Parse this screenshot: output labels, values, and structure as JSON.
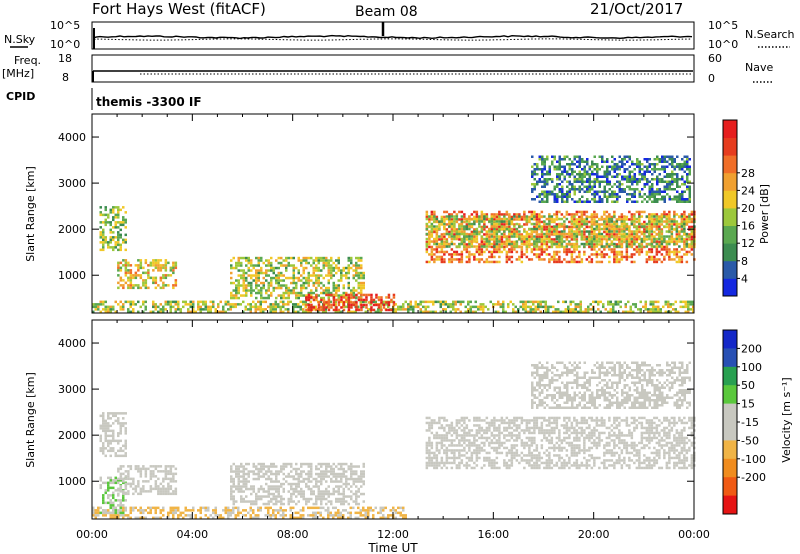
{
  "header": {
    "station": "Fort Hays West (fitACF)",
    "beam": "Beam 08",
    "date": "21/Oct/2017"
  },
  "top_panels": {
    "nsky_label": "N.Sky",
    "nsky_ticks": [
      "10^5",
      "10^0"
    ],
    "nsearch_label": "N.Search",
    "nsearch_ticks": [
      "10^5",
      "10^0"
    ],
    "freq_label": "Freq.",
    "freq_unit": "[MHz]",
    "freq_ticks": [
      "18",
      "8"
    ],
    "nave_label": "Nave",
    "nave_ticks": [
      "60",
      "0"
    ],
    "cpid_label": "CPID",
    "cpid_text": "themis -3300 IF"
  },
  "colors": {
    "power_scale": [
      "#1428e0",
      "#2a5aa8",
      "#3c8c50",
      "#5aa850",
      "#9cc83c",
      "#f0c828",
      "#f0a030",
      "#f06e28",
      "#e63c1e",
      "#e61e1e"
    ],
    "velocity_scale": [
      "#e61414",
      "#f05a14",
      "#f08c1e",
      "#f0b446",
      "#c8c8c0",
      "#c8c8c0",
      "#5ac83c",
      "#28a050",
      "#2850b4",
      "#1428c8"
    ],
    "ground_scatter": "#b4b4b4"
  },
  "chart_data": [
    {
      "type": "heatmap",
      "name": "Power",
      "ylabel": "Slant Range [km]",
      "xlabel": "",
      "xticks": [
        "00:00",
        "04:00",
        "08:00",
        "12:00",
        "16:00",
        "20:00",
        "00:00"
      ],
      "yticks": [
        "1000",
        "2000",
        "3000",
        "4000"
      ],
      "ylim": [
        180,
        4500
      ],
      "colorbar_label": "Power [dB]",
      "colorbar_ticks": [
        "4",
        "8",
        "12",
        "16",
        "20",
        "24",
        "28"
      ],
      "colorbar_range": [
        0,
        30
      ],
      "scatter_regions": [
        {
          "t_start": 0.0,
          "t_end": 24.0,
          "range_low": 200,
          "range_high": 450,
          "power_mean": 14
        },
        {
          "t_start": 0.3,
          "t_end": 1.3,
          "range_low": 1550,
          "range_high": 2500,
          "power_mean": 12
        },
        {
          "t_start": 1.0,
          "t_end": 3.3,
          "range_low": 750,
          "range_high": 1350,
          "power_mean": 16
        },
        {
          "t_start": 5.5,
          "t_end": 10.8,
          "range_low": 500,
          "range_high": 1400,
          "power_mean": 14
        },
        {
          "t_start": 8.5,
          "t_end": 12.0,
          "range_low": 250,
          "range_high": 600,
          "power_mean": 26
        },
        {
          "t_start": 13.3,
          "t_end": 24.0,
          "range_low": 1300,
          "range_high": 2400,
          "power_mean": 22
        },
        {
          "t_start": 13.3,
          "t_end": 24.0,
          "range_low": 1600,
          "range_high": 2300,
          "power_mean": 14
        },
        {
          "t_start": 17.5,
          "t_end": 23.8,
          "range_low": 2600,
          "range_high": 3600,
          "power_mean": 7
        }
      ]
    },
    {
      "type": "heatmap",
      "name": "Velocity",
      "ylabel": "Slant Range [km]",
      "xlabel": "Time UT",
      "xticks": [
        "00:00",
        "04:00",
        "08:00",
        "12:00",
        "16:00",
        "20:00",
        "00:00"
      ],
      "yticks": [
        "1000",
        "2000",
        "3000",
        "4000"
      ],
      "ylim": [
        180,
        4500
      ],
      "colorbar_label": "Velocity [m s⁻¹]",
      "colorbar_ticks": [
        "200",
        "100",
        "50",
        "15",
        "-15",
        "-50",
        "-100",
        "-200"
      ],
      "colorbar_range": [
        -250,
        250
      ],
      "scatter_regions": [
        {
          "t_start": 0.0,
          "t_end": 12.5,
          "range_low": 200,
          "range_high": 450,
          "velocity_mean": -60
        },
        {
          "t_start": 0.3,
          "t_end": 1.3,
          "range_low": 1550,
          "range_high": 2500,
          "velocity_mean": 0
        },
        {
          "t_start": 0.3,
          "t_end": 1.3,
          "range_low": 300,
          "range_high": 1100,
          "velocity_mean": 40
        },
        {
          "t_start": 1.0,
          "t_end": 3.3,
          "range_low": 750,
          "range_high": 1350,
          "velocity_mean": 0
        },
        {
          "t_start": 5.5,
          "t_end": 10.8,
          "range_low": 500,
          "range_high": 1400,
          "velocity_mean": 0
        },
        {
          "t_start": 13.3,
          "t_end": 24.0,
          "range_low": 1300,
          "range_high": 2400,
          "velocity_mean": 0
        },
        {
          "t_start": 17.5,
          "t_end": 23.8,
          "range_low": 2600,
          "range_high": 3600,
          "velocity_mean": -20
        }
      ]
    }
  ]
}
